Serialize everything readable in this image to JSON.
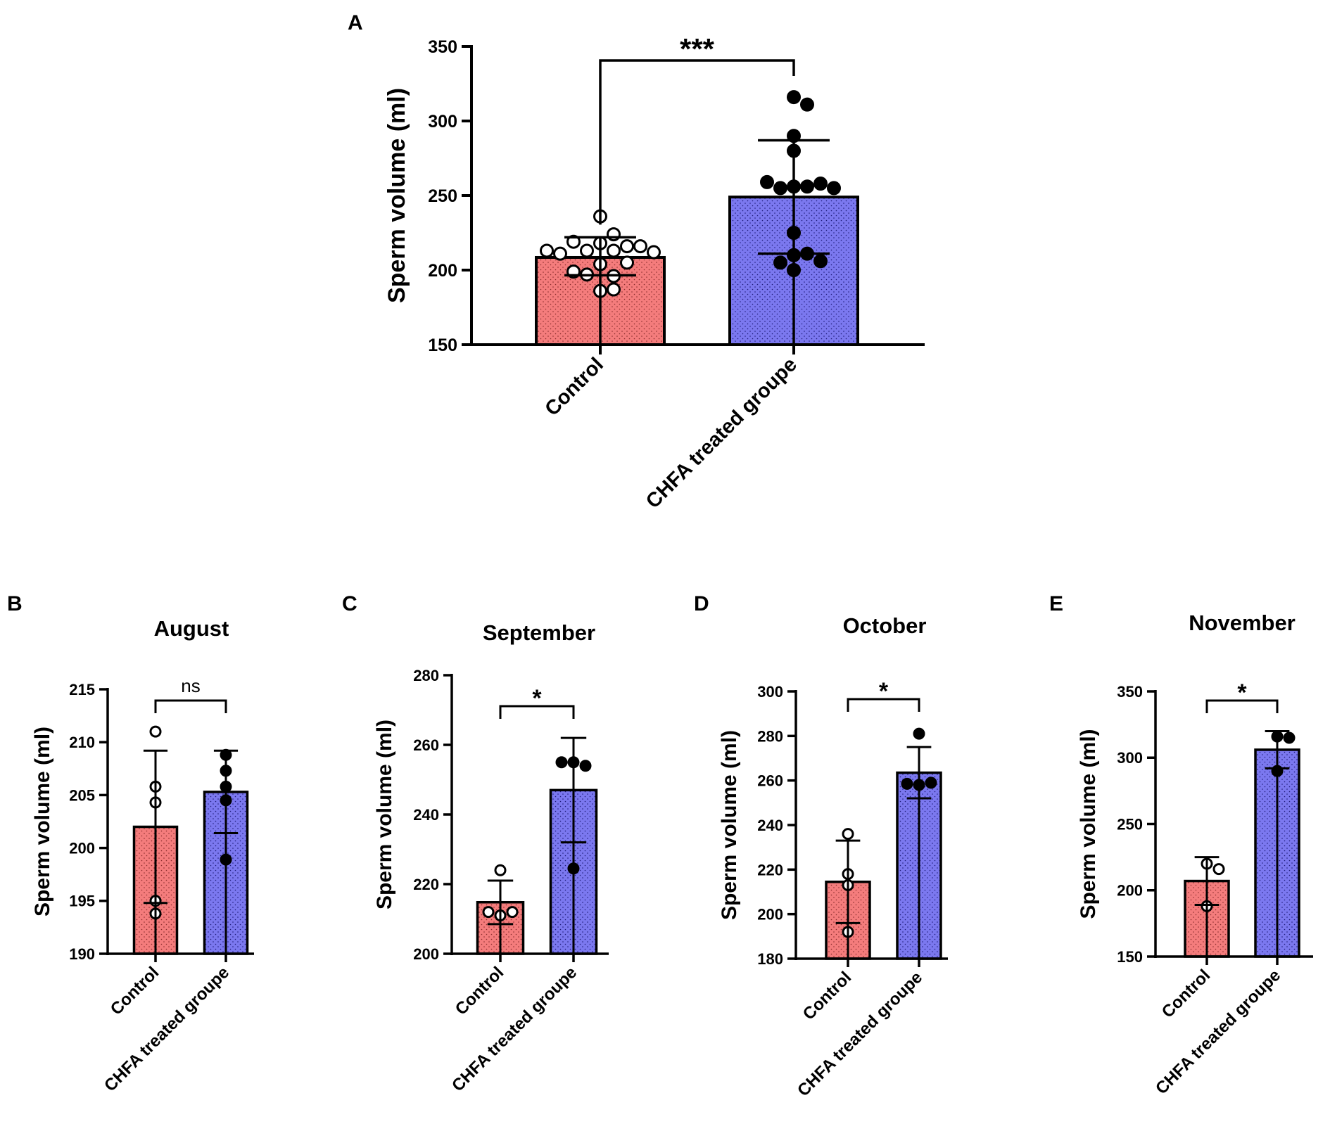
{
  "colors": {
    "control_fill": "#f47c7c",
    "treated_fill": "#7b78ef",
    "stroke": "#000000",
    "background": "#ffffff"
  },
  "chart_data": [
    {
      "panel": "A",
      "type": "bar",
      "title": "",
      "ylabel": "Sperm volume (ml)",
      "ylim": [
        150,
        350
      ],
      "yticks": [
        150,
        200,
        250,
        300,
        350
      ],
      "categories": [
        "Control",
        "CHFA treated groupe"
      ],
      "means": [
        208.5,
        249
      ],
      "sd_upper": [
        222,
        287
      ],
      "sd_lower": [
        196.5,
        211
      ],
      "points": [
        [
          218,
          224,
          213,
          213,
          216,
          219,
          216,
          211,
          212,
          213,
          236,
          204,
          205,
          196,
          197,
          199,
          186,
          187
        ],
        [
          316,
          311,
          290,
          280,
          256,
          256,
          255,
          258,
          259,
          255,
          225,
          210,
          211,
          205,
          206,
          200
        ]
      ],
      "significance": "***"
    },
    {
      "panel": "B",
      "type": "bar",
      "title": "August",
      "ylabel": "Sperm volume (ml)",
      "ylim": [
        190,
        215
      ],
      "yticks": [
        190,
        195,
        200,
        205,
        210,
        215
      ],
      "categories": [
        "Control",
        "CHFA treated groupe"
      ],
      "means": [
        202,
        205.3
      ],
      "sd_upper": [
        209.2,
        209.2
      ],
      "sd_lower": [
        194.8,
        201.4
      ],
      "points": [
        [
          211,
          205.8,
          204.3,
          195,
          193.8
        ],
        [
          208.8,
          207.3,
          205.8,
          204.5,
          198.9
        ]
      ],
      "significance": "ns"
    },
    {
      "panel": "C",
      "type": "bar",
      "title": "September",
      "ylabel": "Sperm volume (ml)",
      "ylim": [
        200,
        280
      ],
      "yticks": [
        200,
        220,
        240,
        260,
        280
      ],
      "categories": [
        "Control",
        "CHFA treated groupe"
      ],
      "means": [
        214.8,
        247
      ],
      "sd_upper": [
        221,
        262
      ],
      "sd_lower": [
        208.5,
        232
      ],
      "points": [
        [
          224,
          211,
          212,
          212
        ],
        [
          255,
          254,
          255,
          224.5
        ]
      ],
      "significance": "*"
    },
    {
      "panel": "D",
      "type": "bar",
      "title": "October",
      "ylabel": "Sperm volume (ml)",
      "ylim": [
        180,
        300
      ],
      "yticks": [
        180,
        200,
        220,
        240,
        260,
        280,
        300
      ],
      "categories": [
        "Control",
        "CHFA treated groupe"
      ],
      "means": [
        214.5,
        263.5
      ],
      "sd_upper": [
        233,
        275
      ],
      "sd_lower": [
        196,
        252
      ],
      "points": [
        [
          236,
          218,
          213,
          192
        ],
        [
          281,
          258,
          259,
          258.5
        ]
      ],
      "significance": "*"
    },
    {
      "panel": "E",
      "type": "bar",
      "title": "November",
      "ylabel": "Sperm volume (ml)",
      "ylim": [
        150,
        350
      ],
      "yticks": [
        150,
        200,
        250,
        300,
        350
      ],
      "categories": [
        "Control",
        "CHFA treated groupe"
      ],
      "means": [
        207,
        306
      ],
      "sd_upper": [
        225,
        320
      ],
      "sd_lower": [
        189,
        292
      ],
      "points": [
        [
          220,
          216,
          188
        ],
        [
          316,
          315,
          290
        ]
      ],
      "significance": "*"
    }
  ]
}
